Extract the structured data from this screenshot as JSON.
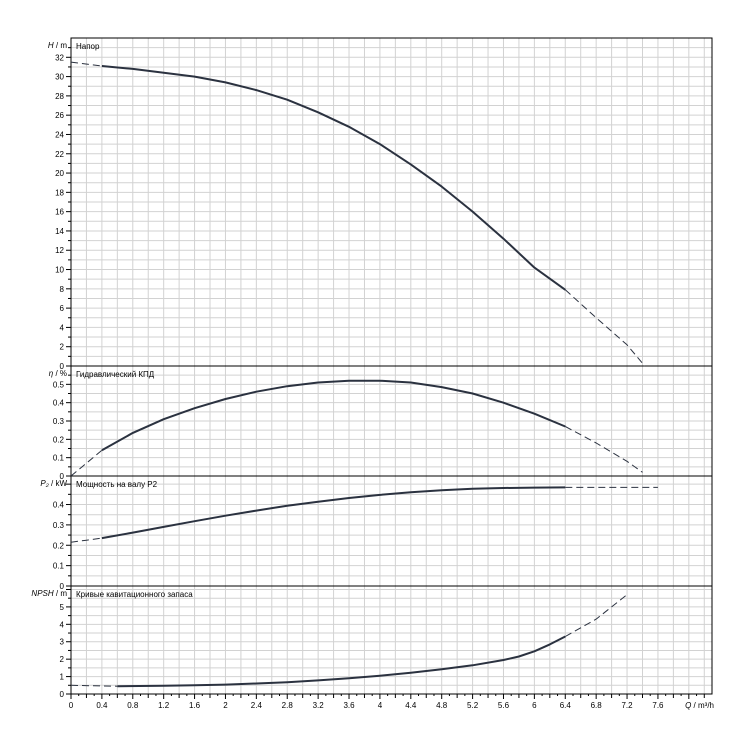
{
  "chart_data": {
    "type": "line",
    "x_axis": {
      "label_prefix": "Q",
      "label_unit": " / m³/h",
      "ticks": [
        "0",
        "0.4",
        "0.8",
        "1.2",
        "1.6",
        "2",
        "2.4",
        "2.8",
        "3.2",
        "3.6",
        "4",
        "4.4",
        "4.8",
        "5.2",
        "5.6",
        "6",
        "6.4",
        "6.8",
        "7.2",
        "7.6"
      ],
      "range": [
        0,
        8.3
      ]
    },
    "panels": [
      {
        "id": "head",
        "title": "Напор",
        "ylabel_prefix": "H",
        "ylabel_unit": " / m",
        "ylim": [
          0,
          34
        ],
        "ytick_step": 2,
        "ytick_labels": [
          "0",
          "2",
          "4",
          "6",
          "8",
          "10",
          "12",
          "14",
          "16",
          "18",
          "20",
          "22",
          "24",
          "26",
          "28",
          "30",
          "32"
        ],
        "series": [
          {
            "style": "dashed",
            "x": [
              0,
              0.4
            ],
            "y": [
              31.5,
              31.1
            ]
          },
          {
            "style": "solid",
            "x": [
              0.4,
              0.8,
              1.2,
              1.6,
              2.0,
              2.4,
              2.8,
              3.2,
              3.6,
              4.0,
              4.4,
              4.8,
              5.2,
              5.6,
              6.0,
              6.4
            ],
            "y": [
              31.1,
              30.8,
              30.4,
              30.0,
              29.4,
              28.6,
              27.6,
              26.3,
              24.8,
              23.0,
              20.9,
              18.6,
              16.0,
              13.2,
              10.2,
              7.9
            ]
          },
          {
            "style": "dashed",
            "x": [
              6.4,
              6.8,
              7.2,
              7.43
            ],
            "y": [
              7.9,
              5.0,
              2.2,
              0
            ]
          }
        ]
      },
      {
        "id": "efficiency",
        "title": "Гидравлический КПД",
        "ylabel_prefix": "η",
        "ylabel_unit": " / %",
        "ylim": [
          0,
          0.6
        ],
        "ytick_step": 0.1,
        "ytick_labels": [
          "0",
          "0.1",
          "0.2",
          "0.3",
          "0.4",
          "0.5"
        ],
        "series": [
          {
            "style": "dashed",
            "x": [
              0,
              0.2,
              0.4
            ],
            "y": [
              0,
              0.07,
              0.14
            ]
          },
          {
            "style": "solid",
            "x": [
              0.4,
              0.8,
              1.2,
              1.6,
              2.0,
              2.4,
              2.8,
              3.2,
              3.6,
              4.0,
              4.4,
              4.8,
              5.2,
              5.6,
              6.0,
              6.4
            ],
            "y": [
              0.14,
              0.235,
              0.31,
              0.37,
              0.42,
              0.46,
              0.49,
              0.51,
              0.52,
              0.52,
              0.51,
              0.485,
              0.45,
              0.4,
              0.34,
              0.27
            ]
          },
          {
            "style": "dashed",
            "x": [
              6.4,
              6.8,
              7.2,
              7.4
            ],
            "y": [
              0.27,
              0.18,
              0.08,
              0.02
            ]
          }
        ]
      },
      {
        "id": "power",
        "title": "Мощность на валу P2",
        "ylabel_prefix": "P₂",
        "ylabel_unit": " / kW",
        "ylim": [
          0,
          0.54
        ],
        "ytick_step": 0.1,
        "ytick_labels": [
          "0",
          "0.1",
          "0.2",
          "0.3",
          "0.4"
        ],
        "series": [
          {
            "style": "dashed",
            "x": [
              0,
              0.2,
              0.4
            ],
            "y": [
              0.215,
              0.225,
              0.235
            ]
          },
          {
            "style": "solid",
            "x": [
              0.4,
              0.8,
              1.2,
              1.6,
              2.0,
              2.4,
              2.8,
              3.2,
              3.6,
              4.0,
              4.4,
              4.8,
              5.2,
              5.6,
              6.0,
              6.4
            ],
            "y": [
              0.235,
              0.262,
              0.29,
              0.318,
              0.345,
              0.37,
              0.394,
              0.414,
              0.432,
              0.447,
              0.46,
              0.47,
              0.477,
              0.481,
              0.483,
              0.484
            ]
          },
          {
            "style": "dashed",
            "x": [
              6.4,
              6.8,
              7.2,
              7.6
            ],
            "y": [
              0.484,
              0.484,
              0.484,
              0.484
            ]
          }
        ]
      },
      {
        "id": "npsh",
        "title": "Кривые кавитационного запаса",
        "ylabel_prefix": "NPSH",
        "ylabel_unit": " / m",
        "ylim": [
          0,
          6.2
        ],
        "ytick_step": 1,
        "ytick_labels": [
          "0",
          "1",
          "2",
          "3",
          "4",
          "5"
        ],
        "series": [
          {
            "style": "dashed",
            "x": [
              0,
              0.3,
              0.6
            ],
            "y": [
              0.5,
              0.47,
              0.45
            ]
          },
          {
            "style": "solid",
            "x": [
              0.6,
              1.2,
              1.6,
              2.0,
              2.4,
              2.8,
              3.2,
              3.6,
              4.0,
              4.4,
              4.8,
              5.2,
              5.6,
              5.8,
              6.0,
              6.2,
              6.4
            ],
            "y": [
              0.45,
              0.47,
              0.5,
              0.54,
              0.6,
              0.68,
              0.78,
              0.9,
              1.05,
              1.22,
              1.42,
              1.65,
              1.95,
              2.15,
              2.45,
              2.85,
              3.3
            ]
          },
          {
            "style": "dashed",
            "x": [
              6.4,
              6.8,
              7.0,
              7.2
            ],
            "y": [
              3.3,
              4.3,
              5.0,
              5.7
            ]
          }
        ]
      }
    ],
    "grid": true,
    "colors": {
      "curve": "#2b3240",
      "grid": "#d2d2d2",
      "axis": "#000000"
    }
  }
}
